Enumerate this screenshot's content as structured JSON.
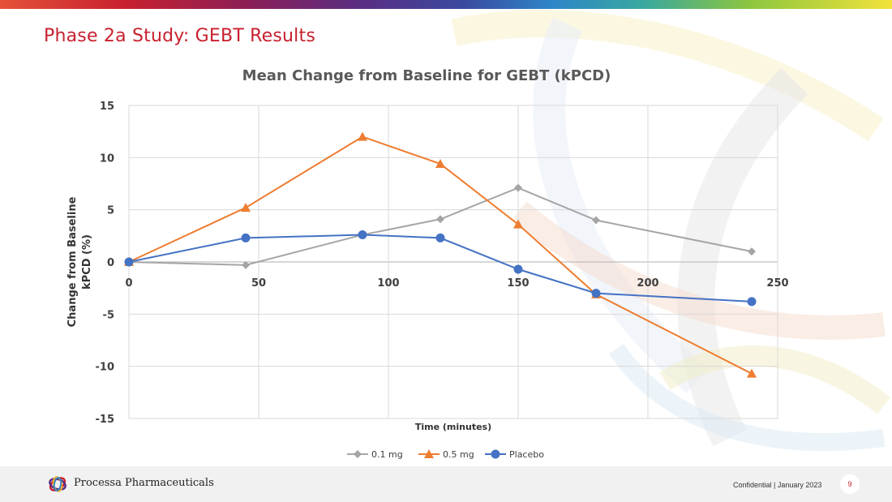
{
  "slide": {
    "title": "Phase 2a Study: GEBT Results"
  },
  "footer": {
    "company": "Processa Pharmaceuticals",
    "confidential": "Confidential | January 2023",
    "page_number": "9"
  },
  "colors": {
    "title": "#c8202f",
    "series_0_1mg": "#a5a5a5",
    "series_0_5mg": "#ed7d31",
    "series_placebo": "#4472c4",
    "grid": "#d9d9d9"
  },
  "chart_data": {
    "type": "line",
    "title": "Mean Change from Baseline for GEBT (kPCD)",
    "xlabel": "Time (minutes)",
    "ylabel": [
      "Change from Baseline",
      "kPCD (%)"
    ],
    "xlim": [
      0,
      250
    ],
    "ylim": [
      -15,
      15
    ],
    "x_ticks": [
      0,
      50,
      100,
      150,
      200,
      250
    ],
    "y_ticks": [
      15,
      10,
      5,
      0,
      -5,
      -10,
      -15
    ],
    "grid": true,
    "legend": "bottom",
    "series": [
      {
        "name": "0.1 mg",
        "marker": "diamond",
        "color": "#a5a5a5",
        "points": [
          [
            0,
            0
          ],
          [
            45,
            -0.3
          ],
          [
            90,
            2.6
          ],
          [
            120,
            4.1
          ],
          [
            150,
            7.1
          ],
          [
            180,
            4.0
          ],
          [
            240,
            1.0
          ]
        ]
      },
      {
        "name": "0.5 mg",
        "marker": "triangle",
        "color": "#ed7d31",
        "points": [
          [
            0,
            0
          ],
          [
            45,
            5.2
          ],
          [
            90,
            12.0
          ],
          [
            120,
            9.4
          ],
          [
            150,
            3.6
          ],
          [
            180,
            -3.1
          ],
          [
            240,
            -10.7
          ]
        ]
      },
      {
        "name": "Placebo",
        "marker": "circle",
        "color": "#4472c4",
        "points": [
          [
            0,
            0
          ],
          [
            45,
            2.3
          ],
          [
            90,
            2.6
          ],
          [
            120,
            2.3
          ],
          [
            150,
            -0.7
          ],
          [
            180,
            -3.0
          ],
          [
            240,
            -3.8
          ]
        ]
      }
    ]
  }
}
